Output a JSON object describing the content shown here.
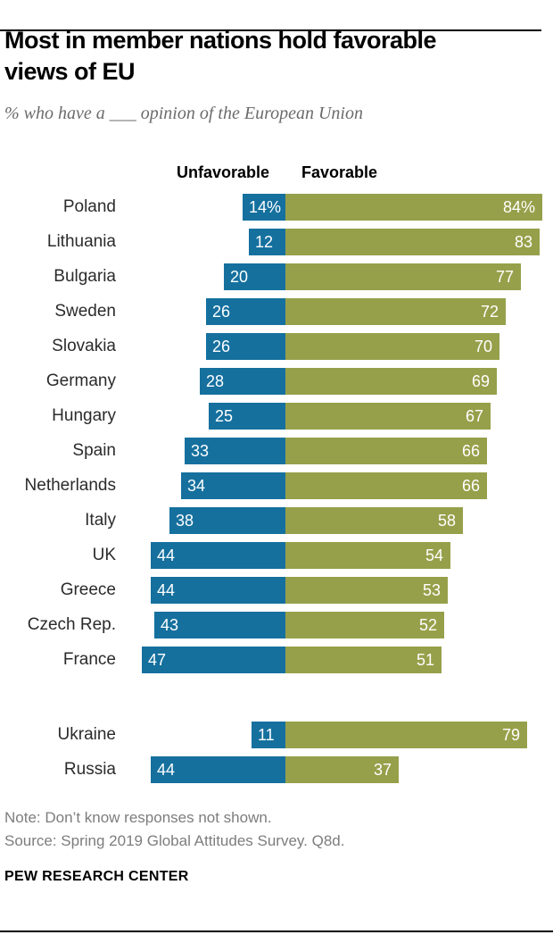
{
  "header": {
    "title": "Most in member nations hold favorable\nviews of EU",
    "subtitle": "% who have a ___ opinion of the European Union"
  },
  "chart_data": {
    "type": "bar",
    "variant": "diverging-horizontal",
    "title": "Most in member nations hold favorable views of EU",
    "subtitle": "% who have a ___ opinion of the European Union",
    "unit": "percent",
    "xlim": [
      0,
      100
    ],
    "grid": false,
    "legend": {
      "position": "top",
      "unfavorable": "Unfavorable",
      "favorable": "Favorable"
    },
    "colors": {
      "unfavorable": "#15709e",
      "favorable": "#96a04a",
      "value_text": "#ffffff"
    },
    "groups": [
      {
        "name": "eu-member-nations",
        "rows": [
          {
            "country": "Poland",
            "unfavorable": 14,
            "favorable": 84,
            "unfavorable_label": "14%",
            "favorable_label": "84%"
          },
          {
            "country": "Lithuania",
            "unfavorable": 12,
            "favorable": 83,
            "unfavorable_label": "12",
            "favorable_label": "83"
          },
          {
            "country": "Bulgaria",
            "unfavorable": 20,
            "favorable": 77,
            "unfavorable_label": "20",
            "favorable_label": "77"
          },
          {
            "country": "Sweden",
            "unfavorable": 26,
            "favorable": 72,
            "unfavorable_label": "26",
            "favorable_label": "72"
          },
          {
            "country": "Slovakia",
            "unfavorable": 26,
            "favorable": 70,
            "unfavorable_label": "26",
            "favorable_label": "70"
          },
          {
            "country": "Germany",
            "unfavorable": 28,
            "favorable": 69,
            "unfavorable_label": "28",
            "favorable_label": "69"
          },
          {
            "country": "Hungary",
            "unfavorable": 25,
            "favorable": 67,
            "unfavorable_label": "25",
            "favorable_label": "67"
          },
          {
            "country": "Spain",
            "unfavorable": 33,
            "favorable": 66,
            "unfavorable_label": "33",
            "favorable_label": "66"
          },
          {
            "country": "Netherlands",
            "unfavorable": 34,
            "favorable": 66,
            "unfavorable_label": "34",
            "favorable_label": "66"
          },
          {
            "country": "Italy",
            "unfavorable": 38,
            "favorable": 58,
            "unfavorable_label": "38",
            "favorable_label": "58"
          },
          {
            "country": "UK",
            "unfavorable": 44,
            "favorable": 54,
            "unfavorable_label": "44",
            "favorable_label": "54"
          },
          {
            "country": "Greece",
            "unfavorable": 44,
            "favorable": 53,
            "unfavorable_label": "44",
            "favorable_label": "53"
          },
          {
            "country": "Czech Rep.",
            "unfavorable": 43,
            "favorable": 52,
            "unfavorable_label": "43",
            "favorable_label": "52"
          },
          {
            "country": "France",
            "unfavorable": 47,
            "favorable": 51,
            "unfavorable_label": "47",
            "favorable_label": "51"
          }
        ]
      },
      {
        "name": "non-member-nations",
        "rows": [
          {
            "country": "Ukraine",
            "unfavorable": 11,
            "favorable": 79,
            "unfavorable_label": "11",
            "favorable_label": "79"
          },
          {
            "country": "Russia",
            "unfavorable": 44,
            "favorable": 37,
            "unfavorable_label": "44",
            "favorable_label": "37"
          }
        ]
      }
    ]
  },
  "footer": {
    "note": "Note: Don’t know responses not shown.",
    "source": "Source: Spring 2019 Global Attitudes Survey. Q8d.",
    "brand": "PEW RESEARCH CENTER"
  }
}
